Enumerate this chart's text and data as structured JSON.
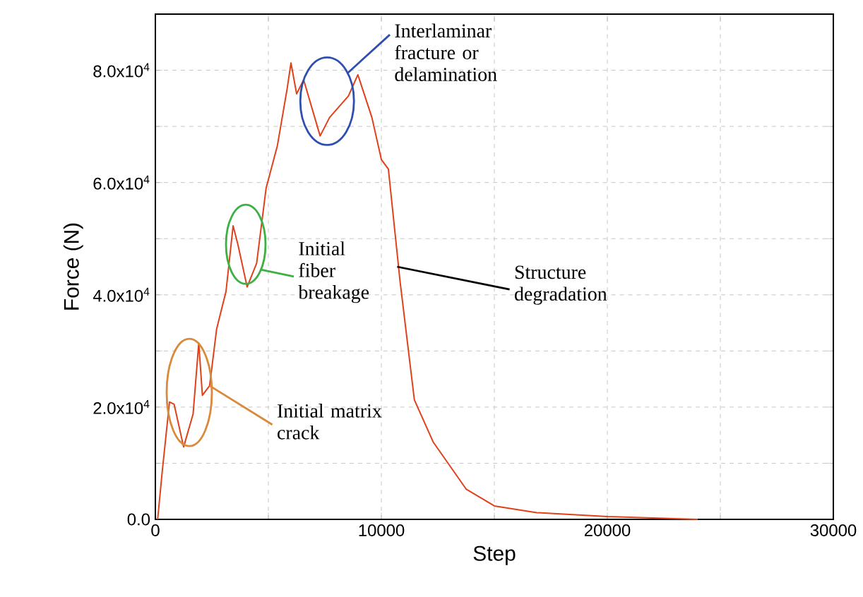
{
  "chart_data": {
    "type": "line",
    "xlabel": "Step",
    "ylabel": "Force (N)",
    "xlim": [
      0,
      30000
    ],
    "ylim": [
      0,
      90000
    ],
    "xticks": [
      0,
      {
        "value": 5000,
        "label": null
      },
      10000,
      {
        "value": 15000,
        "label": null
      },
      20000,
      {
        "value": 25000,
        "label": null
      },
      30000
    ],
    "yticks": [
      {
        "value": 0,
        "label": "0.0"
      },
      {
        "value": 10000,
        "label": null
      },
      {
        "value": 20000,
        "label": "2.0x10$^{4}$"
      },
      {
        "value": 30000,
        "label": null
      },
      {
        "value": 40000,
        "label": "4.0x10$^{4}$"
      },
      {
        "value": 50000,
        "label": null
      },
      {
        "value": 60000,
        "label": "6.0x10$^{4}$"
      },
      {
        "value": 70000,
        "label": null
      },
      {
        "value": 80000,
        "label": "8.0x10$^{4}$"
      }
    ],
    "grid": true,
    "marker": "none",
    "line_style": "solid",
    "x": [
      100,
      310,
      625,
      830,
      1250,
      1670,
      1920,
      2080,
      2400,
      2710,
      3125,
      3440,
      3650,
      4060,
      4480,
      4900,
      5400,
      5830,
      6000,
      6250,
      6560,
      7290,
      7710,
      8540,
      8960,
      9580,
      10000,
      10310,
      10830,
      11460,
      12290,
      13750,
      15000,
      16875,
      20000,
      24000
    ],
    "values": [
      0,
      8800,
      20900,
      20500,
      12900,
      18800,
      31400,
      22100,
      23800,
      33900,
      40600,
      52300,
      49000,
      41400,
      45600,
      59000,
      66600,
      76700,
      81300,
      75800,
      78300,
      68300,
      71600,
      75400,
      79200,
      71600,
      64100,
      62400,
      42300,
      21300,
      13800,
      5400,
      2400,
      1200,
      500,
      0
    ],
    "color": "#e0401a",
    "annotations": [
      {
        "text": "Initial matrix crack",
        "x": 2400,
        "y": 23800
      },
      {
        "text": "Initial fiber breakage",
        "x": 4000,
        "y": 49000
      },
      "Interlaminar fracture or delamination",
      {
        "text": "Structure degradation",
        "x": 10700,
        "y": 45000
      }
    ]
  }
}
